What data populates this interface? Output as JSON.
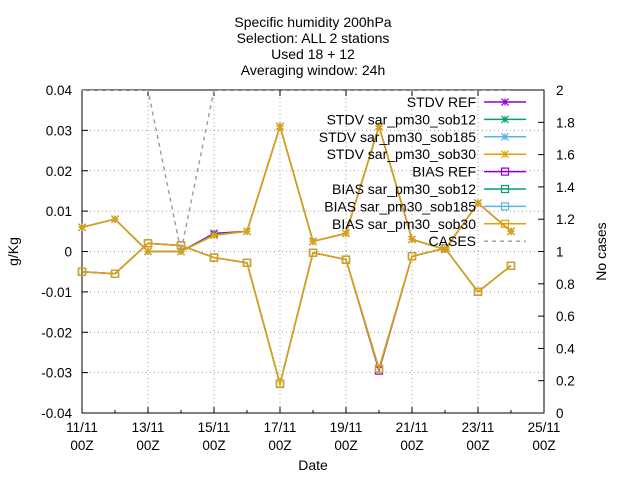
{
  "chart_data": {
    "type": "line",
    "title_lines": [
      "Specific humidity 200hPa",
      "Selection: ALL       2 stations",
      "Used 18 + 12",
      "Averaging window: 24h"
    ],
    "xlabel": "Date",
    "ylabel": "g/Kg",
    "y2label": "No cases",
    "ylim": [
      -0.04,
      0.04
    ],
    "y2lim": [
      0,
      2
    ],
    "x_ticks": [
      {
        "day": 0,
        "line1": "11/11",
        "line2": "00Z"
      },
      {
        "day": 2,
        "line1": "13/11",
        "line2": "00Z"
      },
      {
        "day": 4,
        "line1": "15/11",
        "line2": "00Z"
      },
      {
        "day": 6,
        "line1": "17/11",
        "line2": "00Z"
      },
      {
        "day": 8,
        "line1": "19/11",
        "line2": "00Z"
      },
      {
        "day": 10,
        "line1": "21/11",
        "line2": "00Z"
      },
      {
        "day": 12,
        "line1": "23/11",
        "line2": "00Z"
      },
      {
        "day": 14,
        "line1": "25/11",
        "line2": "00Z"
      }
    ],
    "y_ticks": [
      -0.04,
      -0.03,
      -0.02,
      -0.01,
      0,
      0.01,
      0.02,
      0.03,
      0.04
    ],
    "y2_ticks": [
      0,
      0.2,
      0.4,
      0.6,
      0.8,
      1,
      1.2,
      1.4,
      1.6,
      1.8,
      2
    ],
    "legend_position": "top-right",
    "grid": true,
    "x": [
      0,
      1,
      2,
      3,
      4,
      5,
      6,
      7,
      8,
      9,
      10,
      11,
      12,
      13
    ],
    "series": [
      {
        "name": "STDV REF",
        "axis": "y",
        "color": "#9400d3",
        "marker": "star",
        "values": [
          0.006,
          0.008,
          0.0,
          0.0,
          0.0045,
          0.005,
          0.031,
          0.0025,
          0.0045,
          0.031,
          0.003,
          0.0005,
          0.012,
          0.005
        ]
      },
      {
        "name": "STDV sar_pm30_sob12",
        "axis": "y",
        "color": "#009e73",
        "marker": "star",
        "values": [
          0.006,
          0.008,
          0.0,
          0.0,
          0.0042,
          0.005,
          0.031,
          0.0025,
          0.0045,
          0.031,
          0.003,
          0.0005,
          0.012,
          0.005
        ]
      },
      {
        "name": "STDV sar_pm30_sob185",
        "axis": "y",
        "color": "#56b4e9",
        "marker": "star",
        "values": [
          0.006,
          0.008,
          0.0,
          0.0,
          0.004,
          0.005,
          0.031,
          0.0025,
          0.0045,
          0.031,
          0.003,
          0.0005,
          0.012,
          0.005
        ]
      },
      {
        "name": "STDV sar_pm30_sob30",
        "axis": "y",
        "color": "#e69f00",
        "marker": "star",
        "values": [
          0.006,
          0.008,
          0.0,
          0.0,
          0.004,
          0.005,
          0.031,
          0.0025,
          0.0045,
          0.031,
          0.003,
          0.0005,
          0.012,
          0.005
        ]
      },
      {
        "name": "BIAS REF",
        "axis": "y",
        "color": "#9400d3",
        "marker": "square",
        "values": [
          -0.005,
          -0.0055,
          0.002,
          0.0015,
          -0.0015,
          -0.0028,
          -0.0328,
          -0.0003,
          -0.002,
          -0.0295,
          -0.0012,
          0.0008,
          -0.01,
          -0.0035
        ]
      },
      {
        "name": "BIAS sar_pm30_sob12",
        "axis": "y",
        "color": "#009e73",
        "marker": "square",
        "values": [
          -0.005,
          -0.0055,
          0.002,
          0.0015,
          -0.0015,
          -0.0028,
          -0.0328,
          -0.0003,
          -0.002,
          -0.029,
          -0.0012,
          0.0008,
          -0.01,
          -0.0035
        ]
      },
      {
        "name": "BIAS sar_pm30_sob185",
        "axis": "y",
        "color": "#56b4e9",
        "marker": "square",
        "values": [
          -0.005,
          -0.0055,
          0.002,
          0.0015,
          -0.0015,
          -0.0028,
          -0.0328,
          -0.0003,
          -0.002,
          -0.029,
          -0.0012,
          0.0008,
          -0.01,
          -0.0035
        ]
      },
      {
        "name": "BIAS sar_pm30_sob30",
        "axis": "y",
        "color": "#e69f00",
        "marker": "square",
        "values": [
          -0.005,
          -0.0055,
          0.002,
          0.0015,
          -0.0015,
          -0.0028,
          -0.0328,
          -0.0003,
          -0.002,
          -0.029,
          -0.0012,
          0.0008,
          -0.01,
          -0.0035
        ]
      },
      {
        "name": "CASES",
        "axis": "y2",
        "color": "#a0a0a0",
        "marker": "none",
        "dashed": true,
        "values": [
          2,
          2,
          2,
          1,
          2,
          2,
          2,
          2,
          2,
          2,
          2,
          2,
          2,
          2
        ]
      }
    ]
  }
}
